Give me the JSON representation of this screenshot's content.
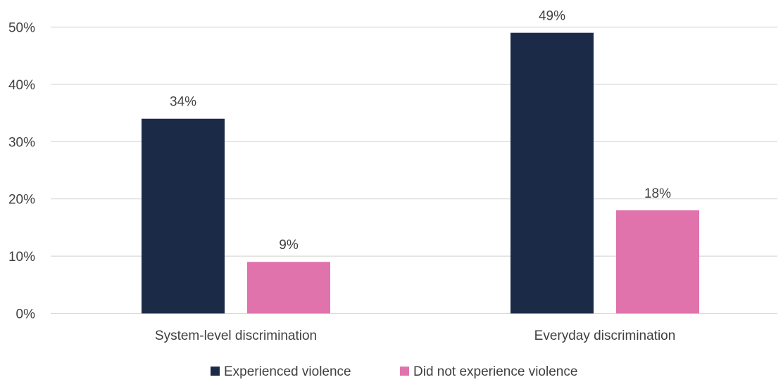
{
  "chart_data": {
    "type": "bar",
    "categories": [
      "System-level discrimination",
      "Everyday discrimination"
    ],
    "series": [
      {
        "name": "Experienced violence",
        "values": [
          34,
          49
        ],
        "labels": [
          "34%",
          "49%"
        ]
      },
      {
        "name": "Did not experience violence",
        "values": [
          9,
          18
        ],
        "labels": [
          "9%",
          "18%"
        ]
      }
    ],
    "colors": [
      "#1b2a47",
      "#e173ac"
    ],
    "ylim": [
      0,
      50
    ],
    "yticks": [
      "0%",
      "10%",
      "20%",
      "30%",
      "40%",
      "50%"
    ],
    "grid": true,
    "legend": "bottom"
  }
}
